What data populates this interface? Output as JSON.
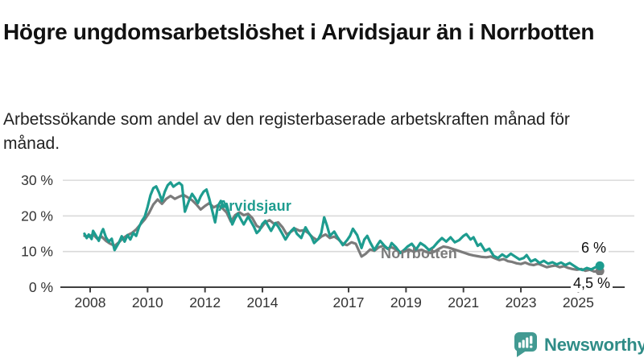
{
  "header": {
    "title": "Högre ungdomsarbetslöshet i Arvidsjaur än i Norrbotten",
    "subtitle": "Arbetssökande som andel av den registerbaserade arbetskraften månad för månad."
  },
  "footer": {
    "brand": "Newsworthy",
    "logo_icon": "bar-chart-speech-bubble-icon"
  },
  "colors": {
    "arvidsjaur": "#1d9c8f",
    "norrbotten": "#7b7b7b",
    "grid": "#d9d9d9",
    "axis": "#3f3f3f",
    "tick_text": "#333333",
    "end_label_text": "#111111",
    "brand_icon": "#429a92",
    "brand_text": "#2f8c87"
  },
  "chart_data": {
    "type": "line",
    "unit": "%",
    "grid": "horizontal",
    "legend_position": "inline-labels",
    "xlim": [
      2007.8,
      2025.75
    ],
    "ylim": [
      0,
      32
    ],
    "x_ticks": [
      {
        "year": 2008,
        "label": "2008"
      },
      {
        "year": 2010,
        "label": "2010"
      },
      {
        "year": 2012,
        "label": "2012"
      },
      {
        "year": 2014,
        "label": "2014"
      },
      {
        "year": 2017,
        "label": "2017"
      },
      {
        "year": 2019,
        "label": "2019"
      },
      {
        "year": 2021,
        "label": "2021"
      },
      {
        "year": 2023,
        "label": "2023"
      },
      {
        "year": 2025,
        "label": "2025"
      }
    ],
    "y_ticks": [
      {
        "value": 0,
        "label": "0 %"
      },
      {
        "value": 10,
        "label": "10 %"
      },
      {
        "value": 20,
        "label": "20 %"
      },
      {
        "value": 30,
        "label": "30 %"
      }
    ],
    "series": [
      {
        "name": "Arvidsjaur",
        "color_key": "arvidsjaur",
        "end_label": "6 %",
        "end_value": 6.0,
        "points": [
          [
            2007.8,
            15.0
          ],
          [
            2007.88,
            13.8
          ],
          [
            2007.95,
            14.8
          ],
          [
            2008.05,
            13.5
          ],
          [
            2008.1,
            15.8
          ],
          [
            2008.2,
            14.5
          ],
          [
            2008.3,
            13.0
          ],
          [
            2008.4,
            15.5
          ],
          [
            2008.45,
            16.3
          ],
          [
            2008.55,
            14.0
          ],
          [
            2008.65,
            12.8
          ],
          [
            2008.75,
            13.6
          ],
          [
            2008.85,
            10.4
          ],
          [
            2009.0,
            12.5
          ],
          [
            2009.1,
            14.3
          ],
          [
            2009.2,
            12.8
          ],
          [
            2009.3,
            14.6
          ],
          [
            2009.4,
            13.4
          ],
          [
            2009.5,
            15.2
          ],
          [
            2009.6,
            14.4
          ],
          [
            2009.7,
            16.8
          ],
          [
            2009.8,
            18.6
          ],
          [
            2009.9,
            19.8
          ],
          [
            2010.0,
            22.5
          ],
          [
            2010.1,
            25.8
          ],
          [
            2010.2,
            27.8
          ],
          [
            2010.3,
            28.3
          ],
          [
            2010.4,
            26.5
          ],
          [
            2010.5,
            24.2
          ],
          [
            2010.6,
            26.8
          ],
          [
            2010.7,
            28.6
          ],
          [
            2010.8,
            29.4
          ],
          [
            2010.9,
            28.2
          ],
          [
            2011.0,
            28.8
          ],
          [
            2011.1,
            29.3
          ],
          [
            2011.2,
            28.6
          ],
          [
            2011.3,
            21.2
          ],
          [
            2011.45,
            24.5
          ],
          [
            2011.55,
            26.2
          ],
          [
            2011.65,
            25.0
          ],
          [
            2011.75,
            23.6
          ],
          [
            2011.85,
            25.5
          ],
          [
            2011.95,
            26.8
          ],
          [
            2012.05,
            27.4
          ],
          [
            2012.15,
            24.8
          ],
          [
            2012.25,
            21.5
          ],
          [
            2012.35,
            18.2
          ],
          [
            2012.45,
            22.8
          ],
          [
            2012.55,
            24.2
          ],
          [
            2012.65,
            22.6
          ],
          [
            2012.75,
            23.4
          ],
          [
            2012.85,
            20.2
          ],
          [
            2012.95,
            17.6
          ],
          [
            2013.05,
            19.4
          ],
          [
            2013.15,
            20.6
          ],
          [
            2013.25,
            19.0
          ],
          [
            2013.35,
            17.6
          ],
          [
            2013.5,
            19.8
          ],
          [
            2013.6,
            18.4
          ],
          [
            2013.7,
            17.0
          ],
          [
            2013.8,
            15.2
          ],
          [
            2013.9,
            16.0
          ],
          [
            2014.0,
            17.8
          ],
          [
            2014.1,
            18.6
          ],
          [
            2014.2,
            17.2
          ],
          [
            2014.3,
            15.8
          ],
          [
            2014.45,
            18.0
          ],
          [
            2014.55,
            17.0
          ],
          [
            2014.65,
            15.6
          ],
          [
            2014.8,
            13.4
          ],
          [
            2014.9,
            14.6
          ],
          [
            2015.0,
            15.8
          ],
          [
            2015.1,
            16.6
          ],
          [
            2015.2,
            15.0
          ],
          [
            2015.35,
            13.8
          ],
          [
            2015.5,
            16.8
          ],
          [
            2015.6,
            15.4
          ],
          [
            2015.7,
            14.2
          ],
          [
            2015.8,
            12.4
          ],
          [
            2015.95,
            13.6
          ],
          [
            2016.05,
            15.2
          ],
          [
            2016.15,
            19.6
          ],
          [
            2016.25,
            17.2
          ],
          [
            2016.35,
            14.4
          ],
          [
            2016.5,
            15.6
          ],
          [
            2016.6,
            14.2
          ],
          [
            2016.7,
            13.0
          ],
          [
            2016.8,
            11.8
          ],
          [
            2016.95,
            13.2
          ],
          [
            2017.05,
            14.4
          ],
          [
            2017.15,
            16.4
          ],
          [
            2017.3,
            14.6
          ],
          [
            2017.45,
            11.0
          ],
          [
            2017.55,
            13.4
          ],
          [
            2017.65,
            14.4
          ],
          [
            2017.75,
            12.6
          ],
          [
            2017.9,
            10.4
          ],
          [
            2018.0,
            11.8
          ],
          [
            2018.1,
            13.0
          ],
          [
            2018.25,
            11.6
          ],
          [
            2018.4,
            10.6
          ],
          [
            2018.5,
            12.4
          ],
          [
            2018.65,
            11.2
          ],
          [
            2018.8,
            9.6
          ],
          [
            2018.95,
            10.6
          ],
          [
            2019.05,
            11.4
          ],
          [
            2019.2,
            12.2
          ],
          [
            2019.35,
            10.6
          ],
          [
            2019.5,
            12.4
          ],
          [
            2019.65,
            11.6
          ],
          [
            2019.8,
            10.4
          ],
          [
            2019.95,
            11.2
          ],
          [
            2020.1,
            12.6
          ],
          [
            2020.25,
            13.8
          ],
          [
            2020.4,
            12.8
          ],
          [
            2020.55,
            14.0
          ],
          [
            2020.7,
            12.6
          ],
          [
            2020.85,
            13.2
          ],
          [
            2021.0,
            14.4
          ],
          [
            2021.1,
            14.9
          ],
          [
            2021.25,
            13.4
          ],
          [
            2021.35,
            14.0
          ],
          [
            2021.5,
            11.6
          ],
          [
            2021.6,
            12.2
          ],
          [
            2021.75,
            10.2
          ],
          [
            2021.9,
            10.8
          ],
          [
            2022.05,
            8.8
          ],
          [
            2022.2,
            8.2
          ],
          [
            2022.35,
            9.2
          ],
          [
            2022.5,
            8.4
          ],
          [
            2022.65,
            9.4
          ],
          [
            2022.8,
            8.6
          ],
          [
            2022.95,
            7.8
          ],
          [
            2023.1,
            8.2
          ],
          [
            2023.2,
            9.0
          ],
          [
            2023.35,
            7.2
          ],
          [
            2023.5,
            7.8
          ],
          [
            2023.65,
            6.8
          ],
          [
            2023.8,
            7.4
          ],
          [
            2023.95,
            6.6
          ],
          [
            2024.1,
            7.0
          ],
          [
            2024.25,
            6.4
          ],
          [
            2024.4,
            6.9
          ],
          [
            2024.55,
            6.2
          ],
          [
            2024.7,
            6.8
          ],
          [
            2024.85,
            6.0
          ],
          [
            2025.0,
            5.2
          ],
          [
            2025.15,
            4.8
          ],
          [
            2025.3,
            5.4
          ],
          [
            2025.45,
            5.0
          ],
          [
            2025.6,
            5.6
          ],
          [
            2025.75,
            6.0
          ]
        ]
      },
      {
        "name": "Norrbotten",
        "color_key": "norrbotten",
        "end_label": "4,5 %",
        "end_value": 4.5,
        "points": [
          [
            2007.8,
            14.4
          ],
          [
            2007.95,
            14.2
          ],
          [
            2008.1,
            14.8
          ],
          [
            2008.25,
            13.6
          ],
          [
            2008.4,
            14.2
          ],
          [
            2008.55,
            13.0
          ],
          [
            2008.7,
            12.2
          ],
          [
            2008.85,
            11.6
          ],
          [
            2009.0,
            12.6
          ],
          [
            2009.15,
            13.8
          ],
          [
            2009.3,
            14.6
          ],
          [
            2009.45,
            15.2
          ],
          [
            2009.6,
            16.2
          ],
          [
            2009.75,
            17.6
          ],
          [
            2009.9,
            19.0
          ],
          [
            2010.05,
            20.8
          ],
          [
            2010.2,
            23.2
          ],
          [
            2010.35,
            24.6
          ],
          [
            2010.5,
            23.4
          ],
          [
            2010.65,
            24.8
          ],
          [
            2010.8,
            25.6
          ],
          [
            2010.95,
            24.8
          ],
          [
            2011.1,
            25.4
          ],
          [
            2011.25,
            25.9
          ],
          [
            2011.4,
            25.2
          ],
          [
            2011.55,
            24.4
          ],
          [
            2011.7,
            23.2
          ],
          [
            2011.85,
            21.8
          ],
          [
            2012.0,
            22.8
          ],
          [
            2012.15,
            23.6
          ],
          [
            2012.3,
            22.4
          ],
          [
            2012.45,
            23.0
          ],
          [
            2012.6,
            22.2
          ],
          [
            2012.75,
            21.0
          ],
          [
            2012.9,
            18.4
          ],
          [
            2013.05,
            20.2
          ],
          [
            2013.2,
            21.0
          ],
          [
            2013.35,
            20.2
          ],
          [
            2013.5,
            20.6
          ],
          [
            2013.65,
            19.4
          ],
          [
            2013.8,
            17.2
          ],
          [
            2013.95,
            16.6
          ],
          [
            2014.1,
            18.2
          ],
          [
            2014.25,
            18.8
          ],
          [
            2014.4,
            17.8
          ],
          [
            2014.55,
            18.2
          ],
          [
            2014.7,
            16.8
          ],
          [
            2014.85,
            14.8
          ],
          [
            2015.0,
            15.6
          ],
          [
            2015.15,
            16.4
          ],
          [
            2015.3,
            15.8
          ],
          [
            2015.45,
            16.0
          ],
          [
            2015.6,
            15.2
          ],
          [
            2015.75,
            14.0
          ],
          [
            2015.9,
            13.2
          ],
          [
            2016.05,
            14.2
          ],
          [
            2016.2,
            14.8
          ],
          [
            2016.35,
            13.8
          ],
          [
            2016.5,
            14.2
          ],
          [
            2016.65,
            13.4
          ],
          [
            2016.8,
            12.2
          ],
          [
            2016.95,
            11.8
          ],
          [
            2017.1,
            12.6
          ],
          [
            2017.25,
            12.2
          ],
          [
            2017.45,
            8.6
          ],
          [
            2017.6,
            9.4
          ],
          [
            2017.75,
            10.6
          ],
          [
            2017.9,
            10.2
          ],
          [
            2018.05,
            11.2
          ],
          [
            2018.2,
            11.6
          ],
          [
            2018.35,
            10.8
          ],
          [
            2018.5,
            11.2
          ],
          [
            2018.65,
            10.6
          ],
          [
            2018.8,
            9.8
          ],
          [
            2018.95,
            10.0
          ],
          [
            2019.1,
            10.6
          ],
          [
            2019.25,
            10.0
          ],
          [
            2019.4,
            10.3
          ],
          [
            2019.55,
            10.5
          ],
          [
            2019.7,
            9.9
          ],
          [
            2019.85,
            9.6
          ],
          [
            2020.0,
            10.0
          ],
          [
            2020.15,
            10.8
          ],
          [
            2020.3,
            11.4
          ],
          [
            2020.45,
            11.2
          ],
          [
            2020.6,
            10.8
          ],
          [
            2020.75,
            10.4
          ],
          [
            2020.9,
            10.0
          ],
          [
            2021.05,
            9.6
          ],
          [
            2021.2,
            9.2
          ],
          [
            2021.35,
            8.9
          ],
          [
            2021.5,
            8.7
          ],
          [
            2021.65,
            8.5
          ],
          [
            2021.8,
            8.4
          ],
          [
            2021.95,
            8.6
          ],
          [
            2022.1,
            8.1
          ],
          [
            2022.25,
            7.6
          ],
          [
            2022.4,
            7.9
          ],
          [
            2022.55,
            7.3
          ],
          [
            2022.7,
            7.1
          ],
          [
            2022.85,
            6.7
          ],
          [
            2023.0,
            6.5
          ],
          [
            2023.15,
            6.9
          ],
          [
            2023.3,
            6.4
          ],
          [
            2023.45,
            6.2
          ],
          [
            2023.6,
            6.6
          ],
          [
            2023.75,
            6.1
          ],
          [
            2023.9,
            5.6
          ],
          [
            2024.05,
            5.9
          ],
          [
            2024.2,
            6.1
          ],
          [
            2024.35,
            5.6
          ],
          [
            2024.5,
            5.9
          ],
          [
            2024.65,
            5.4
          ],
          [
            2024.8,
            5.1
          ],
          [
            2024.95,
            4.9
          ],
          [
            2025.1,
            5.1
          ],
          [
            2025.25,
            4.6
          ],
          [
            2025.4,
            4.9
          ],
          [
            2025.55,
            4.4
          ],
          [
            2025.75,
            4.5
          ]
        ]
      }
    ]
  }
}
